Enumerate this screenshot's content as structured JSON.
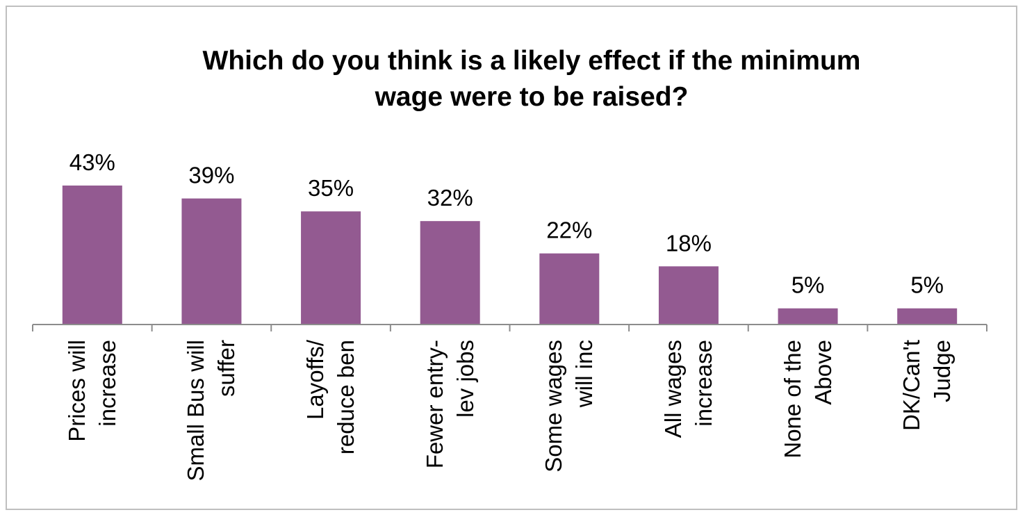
{
  "chart_data": {
    "type": "bar",
    "title_lines": [
      "Which do you think is a likely effect if the minimum",
      "wage were to be raised?"
    ],
    "categories": [
      [
        "Prices will",
        "increase"
      ],
      [
        "Small Bus will",
        "suffer"
      ],
      [
        "Layoffs/",
        "reduce ben"
      ],
      [
        "Fewer entry-",
        "lev jobs"
      ],
      [
        "Some wages",
        "will inc"
      ],
      [
        "All wages",
        "increase"
      ],
      [
        "None of the",
        "Above"
      ],
      [
        "DK/Can't",
        "Judge"
      ]
    ],
    "values": [
      43,
      39,
      35,
      32,
      22,
      18,
      5,
      5
    ],
    "value_labels": [
      "43%",
      "39%",
      "35%",
      "32%",
      "22%",
      "18%",
      "5%",
      "5%"
    ],
    "unit": "%",
    "ylim": [
      0,
      43
    ],
    "grid": false,
    "legend": "none",
    "colors": {
      "bar": "#935a91",
      "axis": "#8c8c8c",
      "border": "#bfbfbf"
    }
  }
}
